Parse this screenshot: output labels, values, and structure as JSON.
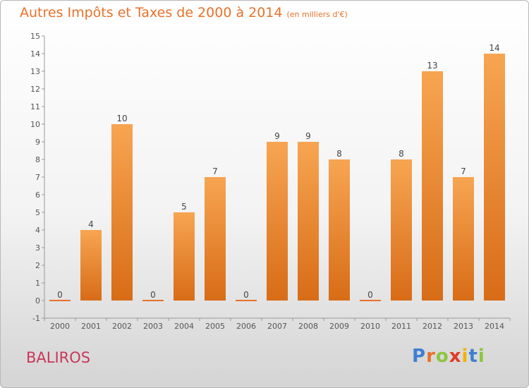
{
  "title": "Autres Impôts et Taxes de 2000 à 2014",
  "subtitle": "(en milliers d'€)",
  "commune": "BALIROS",
  "logo": {
    "letters": [
      "P",
      "r",
      "o",
      "x",
      "i",
      "t",
      "i"
    ],
    "colors": [
      "#3f7fd2",
      "#e8712a",
      "#8cc63f",
      "#e03a2a",
      "#f0b400",
      "#3f7fd2",
      "#8cc63f"
    ]
  },
  "chart_data": {
    "type": "bar",
    "categories": [
      "2000",
      "2001",
      "2002",
      "2003",
      "2004",
      "2005",
      "2006",
      "2007",
      "2008",
      "2009",
      "2010",
      "2011",
      "2012",
      "2013",
      "2014"
    ],
    "values": [
      0,
      4,
      10,
      0,
      5,
      7,
      0,
      9,
      9,
      8,
      0,
      8,
      13,
      7,
      14
    ],
    "ylim": [
      -1,
      15
    ],
    "yticks": [
      -1,
      0,
      1,
      2,
      3,
      4,
      5,
      6,
      7,
      8,
      9,
      10,
      11,
      12,
      13,
      14,
      15
    ],
    "grid": false,
    "bar_color": "#f0903a"
  }
}
